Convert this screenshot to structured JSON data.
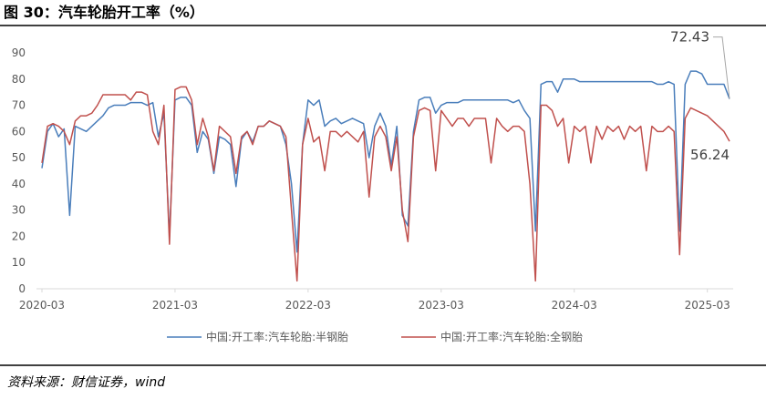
{
  "chart_data": {
    "type": "line",
    "title": "图 30：汽车轮胎开工率（%）",
    "source": "资料来源：财信证券，wind",
    "categories": [
      "2020-03",
      null,
      null,
      null,
      null,
      null,
      null,
      null,
      null,
      null,
      null,
      null,
      null,
      null,
      null,
      null,
      null,
      null,
      null,
      null,
      null,
      null,
      null,
      null,
      "2021-03",
      null,
      null,
      null,
      null,
      null,
      null,
      null,
      null,
      null,
      null,
      null,
      null,
      null,
      null,
      null,
      null,
      null,
      null,
      null,
      null,
      null,
      null,
      null,
      "2022-03",
      null,
      null,
      null,
      null,
      null,
      null,
      null,
      null,
      null,
      null,
      null,
      null,
      null,
      null,
      null,
      null,
      null,
      null,
      null,
      null,
      null,
      null,
      null,
      "2023-03",
      null,
      null,
      null,
      null,
      null,
      null,
      null,
      null,
      null,
      null,
      null,
      null,
      null,
      null,
      null,
      null,
      null,
      null,
      null,
      null,
      null,
      null,
      null,
      "2024-03",
      null,
      null,
      null,
      null,
      null,
      null,
      null,
      null,
      null,
      null,
      null,
      null,
      null,
      null,
      null,
      null,
      null,
      null,
      null,
      null,
      null,
      null,
      null,
      "2025-03",
      null,
      null,
      null,
      null
    ],
    "series": [
      {
        "name": "中国:开工率:汽车轮胎:半钢胎",
        "color": "#4a7ebb",
        "values": [
          46,
          60,
          63,
          58,
          61,
          28,
          62,
          61,
          60,
          62,
          64,
          66,
          69,
          70,
          70,
          70,
          71,
          71,
          71,
          70,
          71,
          58,
          67,
          20,
          72,
          73,
          73,
          70,
          52,
          60,
          57,
          44,
          58,
          57,
          55,
          39,
          57,
          60,
          56,
          62,
          62,
          64,
          63,
          62,
          55,
          40,
          14,
          55,
          72,
          70,
          72,
          62,
          64,
          65,
          63,
          64,
          65,
          64,
          63,
          50,
          62,
          67,
          62,
          47,
          62,
          28,
          24,
          60,
          72,
          73,
          73,
          67,
          70,
          71,
          71,
          71,
          72,
          72,
          72,
          72,
          72,
          72,
          72,
          72,
          72,
          71,
          72,
          68,
          65,
          22,
          78,
          79,
          79,
          75,
          80,
          80,
          80,
          79,
          79,
          79,
          79,
          79,
          79,
          79,
          79,
          79,
          79,
          79,
          79,
          79,
          79,
          78,
          78,
          79,
          78,
          22,
          78,
          83,
          83,
          82,
          78,
          78,
          78,
          78,
          72.43
        ]
      },
      {
        "name": "中国:开工率:汽车轮胎:全钢胎",
        "color": "#c0504d",
        "values": [
          48,
          62,
          63,
          62,
          60,
          55,
          64,
          66,
          66,
          67,
          70,
          74,
          74,
          74,
          74,
          74,
          72,
          75,
          75,
          74,
          60,
          55,
          70,
          17,
          76,
          77,
          77,
          72,
          55,
          65,
          58,
          45,
          62,
          60,
          58,
          44,
          58,
          60,
          55,
          62,
          62,
          64,
          63,
          62,
          58,
          30,
          3,
          55,
          65,
          56,
          58,
          45,
          60,
          60,
          58,
          60,
          58,
          56,
          60,
          35,
          58,
          62,
          58,
          45,
          58,
          30,
          18,
          58,
          68,
          69,
          68,
          45,
          68,
          65,
          62,
          65,
          65,
          62,
          65,
          65,
          65,
          48,
          65,
          62,
          60,
          62,
          62,
          60,
          40,
          3,
          70,
          70,
          68,
          62,
          65,
          48,
          62,
          60,
          62,
          48,
          62,
          57,
          62,
          60,
          62,
          57,
          62,
          60,
          62,
          45,
          62,
          60,
          60,
          62,
          60,
          13,
          65,
          69,
          68,
          67,
          66,
          64,
          62,
          60,
          56.24
        ]
      }
    ],
    "annotations": [
      "72.43",
      "56.24"
    ],
    "ylim": [
      0,
      90
    ],
    "yticks": [
      0,
      10,
      20,
      30,
      40,
      50,
      60,
      70,
      80,
      90
    ],
    "grid": false,
    "legend": "bottom"
  }
}
